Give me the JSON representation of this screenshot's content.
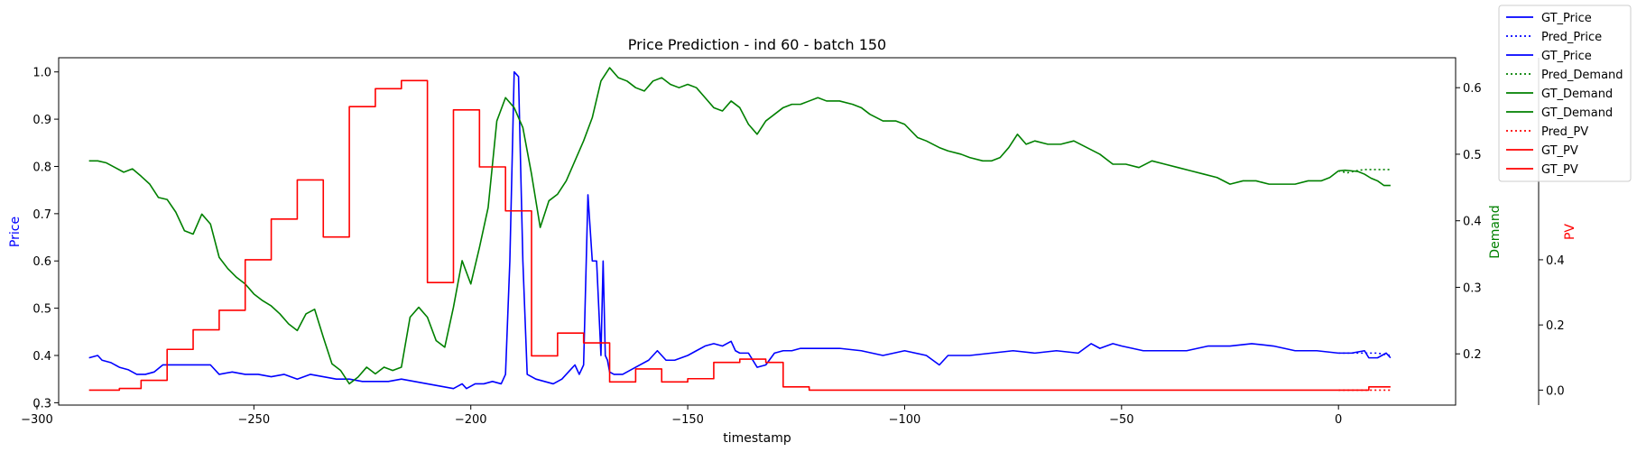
{
  "chart_data": {
    "type": "line",
    "title": "Price Prediction - ind 60 - batch 150",
    "xlabel": "timestamp",
    "xlim": [
      -295,
      27
    ],
    "xticks": [
      -300,
      -250,
      -200,
      -150,
      -100,
      -50,
      0
    ],
    "axes": {
      "price": {
        "label": "Price",
        "color": "#0000ff",
        "ylim": [
          0.295,
          1.03
        ],
        "ticks": [
          0.3,
          0.4,
          0.5,
          0.6,
          0.7,
          0.8,
          0.9,
          1.0
        ],
        "tick_format": 1
      },
      "demand": {
        "label": "Demand",
        "color": "#008000",
        "ylim": [
          0.123,
          0.645
        ],
        "ticks": [
          0.2,
          0.3,
          0.4,
          0.5,
          0.6
        ],
        "tick_format": 1
      },
      "pv": {
        "label": "PV",
        "color": "#ff0000",
        "ylim": [
          -0.046,
          1.02
        ],
        "ticks": [
          0.0,
          0.2,
          0.4
        ],
        "tick_format": 1
      }
    },
    "legend": {
      "placement": "top-right",
      "entries": [
        {
          "label": "GT_Price",
          "color": "#0000ff",
          "dashed": false
        },
        {
          "label": "Pred_Price",
          "color": "#0000ff",
          "dashed": true
        },
        {
          "label": "GT_Price",
          "color": "#0000ff",
          "dashed": false
        },
        {
          "label": "Pred_Demand",
          "color": "#008000",
          "dashed": true
        },
        {
          "label": "GT_Demand",
          "color": "#008000",
          "dashed": false
        },
        {
          "label": "GT_Demand",
          "color": "#008000",
          "dashed": false
        },
        {
          "label": "Pred_PV",
          "color": "#ff0000",
          "dashed": true
        },
        {
          "label": "GT_PV",
          "color": "#ff0000",
          "dashed": false
        },
        {
          "label": "GT_PV",
          "color": "#ff0000",
          "dashed": false
        }
      ]
    },
    "series": [
      {
        "name": "GT_Price",
        "axis": "price",
        "color": "#0000ff",
        "dashed": false,
        "step": false,
        "x": [
          -288,
          -286,
          -285,
          -283,
          -281,
          -279,
          -277,
          -275,
          -273,
          -271,
          -269,
          -266,
          -263,
          -260,
          -258,
          -255,
          -252,
          -249,
          -246,
          -243,
          -240,
          -237,
          -234,
          -231,
          -228,
          -225,
          -222,
          -219,
          -216,
          -213,
          -210,
          -207,
          -204,
          -202,
          -201,
          -199,
          -197,
          -195,
          -193,
          -192,
          -191,
          -190,
          -189,
          -188,
          -187,
          -185,
          -183,
          -181,
          -179,
          -177,
          -176,
          -175,
          -174,
          -173,
          -172,
          -171,
          -170,
          -169.5,
          -169,
          -168.5,
          -168,
          -167,
          -165,
          -163,
          -161,
          -159,
          -157,
          -155,
          -153,
          -150,
          -148,
          -146,
          -144,
          -142,
          -140,
          -139,
          -138,
          -136,
          -134,
          -132,
          -130,
          -128,
          -126,
          -124,
          -122,
          -120,
          -115,
          -110,
          -105,
          -100,
          -95,
          -92,
          -90,
          -88,
          -85,
          -80,
          -75,
          -70,
          -65,
          -60,
          -57,
          -55,
          -52,
          -50,
          -45,
          -40,
          -35,
          -30,
          -25,
          -20,
          -15,
          -10,
          -5,
          0
        ],
        "y": [
          0.395,
          0.4,
          0.39,
          0.385,
          0.375,
          0.37,
          0.36,
          0.36,
          0.365,
          0.38,
          0.38,
          0.38,
          0.38,
          0.38,
          0.36,
          0.365,
          0.36,
          0.36,
          0.355,
          0.36,
          0.35,
          0.36,
          0.355,
          0.35,
          0.35,
          0.345,
          0.345,
          0.345,
          0.35,
          0.345,
          0.34,
          0.335,
          0.33,
          0.34,
          0.33,
          0.34,
          0.34,
          0.345,
          0.34,
          0.36,
          0.6,
          1.0,
          0.99,
          0.6,
          0.36,
          0.35,
          0.345,
          0.34,
          0.35,
          0.37,
          0.38,
          0.36,
          0.38,
          0.74,
          0.6,
          0.6,
          0.4,
          0.6,
          0.4,
          0.39,
          0.365,
          0.36,
          0.36,
          0.37,
          0.38,
          0.39,
          0.41,
          0.39,
          0.39,
          0.4,
          0.41,
          0.42,
          0.425,
          0.42,
          0.43,
          0.41,
          0.405,
          0.405,
          0.375,
          0.38,
          0.405,
          0.41,
          0.41,
          0.415,
          0.415,
          0.415,
          0.415,
          0.41,
          0.4,
          0.41,
          0.4,
          0.38,
          0.4,
          0.4,
          0.4,
          0.405,
          0.41,
          0.405,
          0.41,
          0.405,
          0.425,
          0.415,
          0.425,
          0.42,
          0.41,
          0.41,
          0.41,
          0.42,
          0.42,
          0.425,
          0.42,
          0.41,
          0.41,
          0.405
        ]
      },
      {
        "name": "Pred_Price",
        "axis": "price",
        "color": "#0000ff",
        "dashed": true,
        "step": false,
        "x": [
          0,
          3,
          6,
          9,
          12
        ],
        "y": [
          0.405,
          0.405,
          0.405,
          0.405,
          0.4
        ]
      },
      {
        "name": "GT_Price",
        "axis": "price",
        "color": "#0000ff",
        "dashed": false,
        "step": false,
        "x": [
          0,
          3,
          6,
          7,
          9,
          11,
          12
        ],
        "y": [
          0.405,
          0.405,
          0.41,
          0.395,
          0.395,
          0.405,
          0.395
        ]
      },
      {
        "name": "GT_Demand",
        "axis": "demand",
        "color": "#008000",
        "dashed": false,
        "step": false,
        "x": [
          -288,
          -286,
          -284,
          -282,
          -280,
          -278,
          -276,
          -274,
          -272,
          -270,
          -268,
          -266,
          -264,
          -262,
          -260,
          -258,
          -256,
          -254,
          -252,
          -250,
          -248,
          -246,
          -244,
          -242,
          -240,
          -238,
          -236,
          -234,
          -232,
          -230,
          -228,
          -226,
          -224,
          -222,
          -220,
          -218,
          -216,
          -214,
          -212,
          -210,
          -208,
          -206,
          -204,
          -202,
          -200,
          -198,
          -196,
          -194,
          -192,
          -190,
          -188,
          -186,
          -184,
          -182,
          -180,
          -178,
          -176,
          -174,
          -172,
          -170,
          -168,
          -166,
          -164,
          -162,
          -160,
          -158,
          -156,
          -154,
          -152,
          -150,
          -148,
          -146,
          -144,
          -142,
          -140,
          -138,
          -136,
          -134,
          -132,
          -130,
          -128,
          -126,
          -124,
          -122,
          -120,
          -118,
          -115,
          -112,
          -110,
          -108,
          -105,
          -102,
          -100,
          -97,
          -95,
          -92,
          -90,
          -87,
          -85,
          -82,
          -80,
          -78,
          -76,
          -74,
          -72,
          -70,
          -67,
          -64,
          -61,
          -58,
          -55,
          -52,
          -49,
          -46,
          -43,
          -40,
          -37,
          -34,
          -31,
          -28,
          -25,
          -22,
          -19,
          -16,
          -13,
          -10,
          -7,
          -4,
          -2,
          0
        ],
        "y": [
          0.49,
          0.49,
          0.487,
          0.48,
          0.473,
          0.478,
          0.467,
          0.455,
          0.435,
          0.432,
          0.413,
          0.385,
          0.38,
          0.41,
          0.395,
          0.345,
          0.328,
          0.315,
          0.305,
          0.29,
          0.28,
          0.272,
          0.26,
          0.245,
          0.235,
          0.26,
          0.267,
          0.225,
          0.185,
          0.175,
          0.155,
          0.165,
          0.18,
          0.17,
          0.18,
          0.175,
          0.18,
          0.255,
          0.27,
          0.255,
          0.22,
          0.21,
          0.27,
          0.34,
          0.305,
          0.36,
          0.42,
          0.55,
          0.585,
          0.57,
          0.54,
          0.47,
          0.39,
          0.43,
          0.44,
          0.46,
          0.49,
          0.52,
          0.555,
          0.61,
          0.63,
          0.615,
          0.61,
          0.6,
          0.595,
          0.61,
          0.615,
          0.605,
          0.6,
          0.605,
          0.6,
          0.585,
          0.57,
          0.565,
          0.58,
          0.57,
          0.545,
          0.53,
          0.55,
          0.56,
          0.57,
          0.575,
          0.575,
          0.58,
          0.585,
          0.58,
          0.58,
          0.575,
          0.57,
          0.56,
          0.55,
          0.55,
          0.545,
          0.525,
          0.52,
          0.51,
          0.505,
          0.5,
          0.495,
          0.49,
          0.49,
          0.495,
          0.51,
          0.53,
          0.515,
          0.52,
          0.515,
          0.515,
          0.52,
          0.51,
          0.5,
          0.485,
          0.485,
          0.48,
          0.49,
          0.485,
          0.48,
          0.475,
          0.47,
          0.465,
          0.455,
          0.46,
          0.46,
          0.455,
          0.455,
          0.455,
          0.46,
          0.46,
          0.465,
          0.475
        ]
      },
      {
        "name": "Pred_Demand",
        "axis": "demand",
        "color": "#008000",
        "dashed": true,
        "step": false,
        "x": [
          0,
          2,
          4,
          6,
          8,
          10,
          12
        ],
        "y": [
          0.475,
          0.472,
          0.475,
          0.477,
          0.477,
          0.477,
          0.477
        ]
      },
      {
        "name": "GT_Demand",
        "axis": "demand",
        "color": "#008000",
        "dashed": false,
        "step": false,
        "x": [
          0,
          1.5,
          3,
          4.5,
          6,
          7.5,
          9,
          10.5,
          12
        ],
        "y": [
          0.475,
          0.476,
          0.475,
          0.474,
          0.47,
          0.464,
          0.46,
          0.453,
          0.453
        ]
      },
      {
        "name": "GT_PV",
        "axis": "pv",
        "color": "#ff0000",
        "dashed": false,
        "step": true,
        "x": [
          -288,
          -281,
          -276,
          -270,
          -264,
          -258,
          -252,
          -246,
          -240,
          -234,
          -228,
          -222,
          -216,
          -210,
          -204,
          -198,
          -192,
          -186,
          -180,
          -174,
          -168,
          -162,
          -156,
          -150,
          -144,
          -138,
          -132,
          -128,
          -122,
          0
        ],
        "y": [
          0.0,
          0.005,
          0.03,
          0.125,
          0.185,
          0.245,
          0.4,
          0.525,
          0.645,
          0.47,
          0.87,
          0.925,
          0.95,
          0.33,
          0.86,
          0.685,
          0.55,
          0.105,
          0.175,
          0.145,
          0.025,
          0.065,
          0.025,
          0.035,
          0.085,
          0.095,
          0.085,
          0.01,
          0.0,
          0.0
        ]
      },
      {
        "name": "Pred_PV",
        "axis": "pv",
        "color": "#ff0000",
        "dashed": true,
        "step": false,
        "x": [
          0,
          4,
          8,
          12
        ],
        "y": [
          0.0,
          0.0,
          0.0,
          0.0
        ]
      },
      {
        "name": "GT_PV",
        "axis": "pv",
        "color": "#ff0000",
        "dashed": false,
        "step": true,
        "x": [
          0,
          7,
          12
        ],
        "y": [
          0.0,
          0.01,
          0.01
        ]
      }
    ]
  }
}
